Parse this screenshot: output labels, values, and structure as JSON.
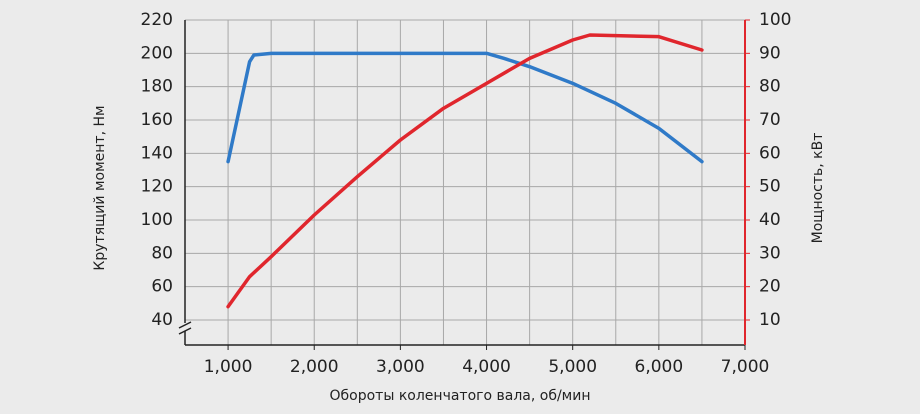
{
  "chart_data": {
    "type": "line",
    "x_label": "Обороты коленчатого вала, об/мин",
    "y_label": "Крутящий момент, Нм",
    "y2_label": "Мощность, кВт",
    "xlim": [
      500,
      7000
    ],
    "xticks": [
      {
        "value": 1000,
        "label": "1,000"
      },
      {
        "value": 2000,
        "label": "2,000"
      },
      {
        "value": 3000,
        "label": "3,000"
      },
      {
        "value": 4000,
        "label": "4,000"
      },
      {
        "value": 5000,
        "label": "5,000"
      },
      {
        "value": 6000,
        "label": "6,000"
      },
      {
        "value": 7000,
        "label": "7,000"
      }
    ],
    "x_minor_grid": [
      1500,
      2500,
      3500,
      4500,
      5500,
      6500
    ],
    "ylim": [
      25,
      220
    ],
    "yticks": [
      40,
      60,
      80,
      100,
      120,
      140,
      160,
      180,
      200,
      220
    ],
    "y2lim": [
      2.5,
      100
    ],
    "y2ticks": [
      10,
      20,
      30,
      40,
      50,
      60,
      70,
      80,
      90,
      100
    ],
    "grid": true,
    "y2_color": "#e0262d",
    "series": [
      {
        "name": "Крутящий момент",
        "color": "#2f7ac8",
        "x": [
          1000,
          1250,
          1300,
          1500,
          4000,
          4200,
          4500,
          5000,
          5500,
          6000,
          6500
        ],
        "values": [
          135,
          195,
          199,
          200,
          200,
          197,
          192,
          182,
          170,
          155,
          135
        ]
      },
      {
        "name": "Мощность",
        "color": "#e0262d",
        "axis": "y2",
        "x": [
          1000,
          1250,
          1500,
          2000,
          2500,
          3000,
          3500,
          4000,
          4500,
          5000,
          5200,
          6000,
          6500
        ],
        "values": [
          14,
          23,
          29,
          41.5,
          53,
          64,
          73.5,
          81,
          88.5,
          94,
          95.5,
          95,
          91
        ]
      }
    ]
  }
}
